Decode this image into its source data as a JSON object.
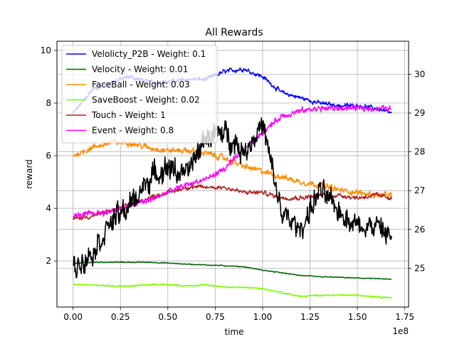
{
  "chart_data": {
    "type": "line",
    "title": "All Rewards",
    "xlabel": "time",
    "ylabel": "reward",
    "x_offset_label": "1e8",
    "xlim": [
      -0.085,
      1.77
    ],
    "ylim": [
      0.25,
      10.35
    ],
    "y2lim": [
      24.0,
      30.85
    ],
    "x_ticks": [
      0.0,
      0.25,
      0.5,
      0.75,
      1.0,
      1.25,
      1.5,
      1.75
    ],
    "x_tick_labels": [
      "0.00",
      "0.25",
      "0.50",
      "0.75",
      "1.00",
      "1.25",
      "1.50",
      "1.75"
    ],
    "y_ticks": [
      2,
      4,
      6,
      8,
      10
    ],
    "y_tick_labels": [
      "2",
      "4",
      "6",
      "8",
      "10"
    ],
    "y2_ticks": [
      25,
      26,
      27,
      28,
      29,
      30
    ],
    "y2_tick_labels": [
      "25",
      "26",
      "27",
      "28",
      "29",
      "30"
    ],
    "grid": true,
    "legend_position": "top-left",
    "x": [
      0.0,
      0.1,
      0.2,
      0.3,
      0.4,
      0.5,
      0.6,
      0.7,
      0.8,
      0.9,
      1.0,
      1.1,
      1.2,
      1.3,
      1.4,
      1.5,
      1.6,
      1.68
    ],
    "series": [
      {
        "name": "Velolicty_P2B - Weight: 0.1",
        "color": "#0000ff",
        "axis": "left",
        "noise": 0.15,
        "values": [
          7.6,
          8.5,
          8.8,
          9.0,
          8.8,
          8.8,
          8.9,
          8.9,
          9.2,
          9.3,
          9.0,
          8.4,
          8.2,
          8.0,
          7.9,
          7.9,
          7.8,
          7.6
        ]
      },
      {
        "name": "Velocity - Weight: 0.01",
        "color": "#006400",
        "axis": "left",
        "noise": 0.03,
        "values": [
          1.9,
          1.95,
          1.95,
          1.95,
          1.95,
          1.92,
          1.88,
          1.85,
          1.82,
          1.78,
          1.65,
          1.55,
          1.45,
          1.4,
          1.38,
          1.35,
          1.33,
          1.3
        ]
      },
      {
        "name": "FaceBall - Weight: 0.03",
        "color": "#ff8c00",
        "axis": "left",
        "noise": 0.2,
        "values": [
          6.0,
          6.3,
          6.5,
          6.5,
          6.3,
          6.2,
          6.2,
          6.1,
          5.9,
          5.6,
          5.4,
          5.2,
          5.0,
          4.9,
          4.7,
          4.6,
          4.5,
          4.5
        ]
      },
      {
        "name": "SaveBoost - Weight: 0.02",
        "color": "#7cfc00",
        "axis": "left",
        "noise": 0.05,
        "values": [
          1.1,
          1.1,
          1.05,
          1.05,
          1.1,
          1.1,
          1.05,
          1.1,
          1.0,
          1.0,
          0.95,
          0.8,
          0.65,
          0.7,
          0.7,
          0.7,
          0.65,
          0.6
        ]
      },
      {
        "name": "Touch - Weight: 1",
        "color": "#b22222",
        "axis": "left",
        "noise": 0.15,
        "values": [
          3.6,
          3.7,
          3.9,
          4.1,
          4.4,
          4.6,
          4.8,
          4.8,
          4.8,
          4.6,
          4.6,
          4.4,
          4.4,
          4.5,
          4.5,
          4.4,
          4.5,
          4.4
        ]
      },
      {
        "name": "Event - Weight: 0.8",
        "color": "#ff00ff",
        "axis": "left",
        "noise": 0.2,
        "values": [
          3.7,
          3.8,
          3.9,
          4.1,
          4.3,
          4.6,
          4.9,
          5.1,
          5.5,
          6.2,
          6.9,
          7.5,
          7.7,
          7.8,
          7.8,
          7.8,
          7.8,
          7.8
        ]
      },
      {
        "name": "",
        "color": "#000000",
        "axis": "right",
        "noise": 0.55,
        "values": [
          25.0,
          25.4,
          26.2,
          26.6,
          27.3,
          27.6,
          27.4,
          28.4,
          28.5,
          28.0,
          28.7,
          26.4,
          26.0,
          27.0,
          26.5,
          26.1,
          26.1,
          25.8
        ]
      }
    ]
  }
}
